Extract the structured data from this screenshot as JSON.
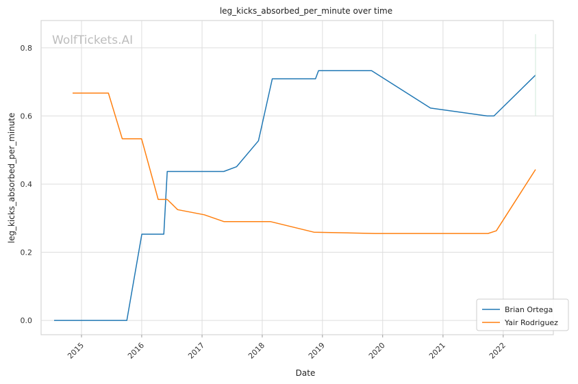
{
  "chart_data": {
    "type": "line",
    "title": "leg_kicks_absorbed_per_minute over time",
    "xlabel": "Date",
    "ylabel": "leg_kicks_absorbed_per_minute",
    "watermark": "WolfTickets.AI",
    "xlim": [
      "2014-05-01",
      "2022-11-01"
    ],
    "ylim": [
      -0.042,
      0.88
    ],
    "x_ticks": [
      "2015-01-01",
      "2016-01-01",
      "2017-01-01",
      "2018-01-01",
      "2019-01-01",
      "2020-01-01",
      "2021-01-01",
      "2022-01-01"
    ],
    "x_tick_labels": [
      "2015",
      "2016",
      "2017",
      "2018",
      "2019",
      "2020",
      "2021",
      "2022"
    ],
    "y_ticks": [
      0.0,
      0.2,
      0.4,
      0.6,
      0.8
    ],
    "y_tick_labels": [
      "0.0",
      "0.2",
      "0.4",
      "0.6",
      "0.8"
    ],
    "grid": true,
    "legend_position": "bottom-right",
    "series": [
      {
        "name": "Brian Ortega",
        "color": "#1f77b4",
        "points": [
          [
            "2014-07-19",
            0.0
          ],
          [
            "2015-10-03",
            0.0
          ],
          [
            "2016-01-02",
            0.253
          ],
          [
            "2016-05-14",
            0.253
          ],
          [
            "2016-06-04",
            0.437
          ],
          [
            "2017-05-13",
            0.437
          ],
          [
            "2017-07-29",
            0.451
          ],
          [
            "2017-12-09",
            0.527
          ],
          [
            "2018-03-03",
            0.709
          ],
          [
            "2018-11-20",
            0.709
          ],
          [
            "2018-12-08",
            0.733
          ],
          [
            "2019-10-26",
            0.733
          ],
          [
            "2020-10-17",
            0.623
          ],
          [
            "2021-09-25",
            0.6
          ],
          [
            "2021-11-06",
            0.6
          ],
          [
            "2022-07-16",
            0.72
          ]
        ]
      },
      {
        "name": "Yair Rodriguez",
        "color": "#ff7f0e",
        "points": [
          [
            "2014-11-08",
            0.667
          ],
          [
            "2015-06-13",
            0.667
          ],
          [
            "2015-09-05",
            0.533
          ],
          [
            "2015-12-31",
            0.533
          ],
          [
            "2016-04-10",
            0.355
          ],
          [
            "2016-06-04",
            0.355
          ],
          [
            "2016-08-06",
            0.325
          ],
          [
            "2017-01-15",
            0.31
          ],
          [
            "2017-05-13",
            0.29
          ],
          [
            "2018-02-19",
            0.29
          ],
          [
            "2018-11-10",
            0.259
          ],
          [
            "2019-11-16",
            0.255
          ],
          [
            "2021-10-01",
            0.255
          ],
          [
            "2021-11-20",
            0.263
          ],
          [
            "2022-07-16",
            0.443
          ]
        ]
      }
    ]
  }
}
